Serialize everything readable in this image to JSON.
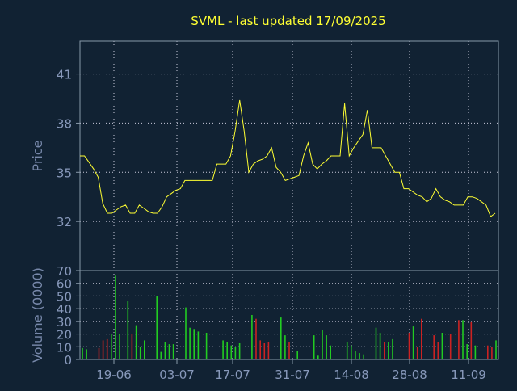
{
  "chart_data": [
    {
      "type": "line",
      "title": "SVML - last updated 17/09/2025",
      "ylabel": "Price",
      "ylim": [
        29.0,
        43.0
      ],
      "y_ticks": [
        32,
        35,
        38,
        41
      ],
      "grid": true,
      "x_tick_labels": [
        "19-06",
        "03-07",
        "17-07",
        "31-07",
        "14-08",
        "28-08",
        "11-09"
      ],
      "series": [
        {
          "values": [
            36.0,
            36.0,
            35.6,
            35.2,
            34.7,
            33.1,
            32.5,
            32.5,
            32.7,
            32.9,
            33.0,
            32.5,
            32.5,
            33.0,
            32.8,
            32.6,
            32.5,
            32.5,
            32.9,
            33.5,
            33.7,
            33.9,
            34.0,
            34.5,
            34.5,
            34.5,
            34.5,
            34.5,
            34.5,
            34.5,
            35.5,
            35.5,
            35.5,
            36.0,
            37.5,
            39.4,
            37.5,
            35.0,
            35.5,
            35.7,
            35.8,
            36.0,
            36.5,
            35.3,
            35.0,
            34.5,
            34.6,
            34.7,
            34.8,
            36.0,
            36.8,
            35.5,
            35.2,
            35.5,
            35.7,
            36.0,
            36.0,
            36.0,
            39.2,
            36.0,
            36.5,
            36.9,
            37.3,
            38.8,
            36.5,
            36.5,
            36.5,
            36.0,
            35.5,
            35.0,
            35.0,
            34.0,
            34.0,
            33.8,
            33.6,
            33.5,
            33.2,
            33.4,
            34.0,
            33.5,
            33.3,
            33.2,
            33.0,
            33.0,
            33.0,
            33.5,
            33.5,
            33.4,
            33.2,
            33.0,
            32.3,
            32.5
          ]
        }
      ]
    },
    {
      "type": "bar",
      "ylabel": "Volume (0000)",
      "ylim": [
        0,
        70
      ],
      "y_ticks": [
        0,
        10,
        20,
        30,
        40,
        50,
        60,
        70
      ],
      "grid": true,
      "series": [
        {
          "values": [
            9,
            8,
            0,
            0,
            9,
            15,
            16,
            20,
            66,
            20,
            0,
            46,
            20,
            27,
            10,
            15,
            0,
            0,
            50,
            6,
            14,
            12,
            12,
            0,
            0,
            41,
            25,
            24,
            22,
            0,
            21,
            0,
            0,
            0,
            15,
            14,
            11,
            10,
            13,
            0,
            0,
            35,
            32,
            15,
            13,
            14,
            0,
            0,
            33,
            19,
            14,
            0,
            7,
            0,
            0,
            0,
            19,
            3,
            23,
            19,
            11,
            0,
            0,
            0,
            14,
            11,
            7,
            5,
            4,
            0,
            0,
            25,
            21,
            14,
            14,
            16,
            0,
            0,
            0,
            21,
            26,
            10,
            32,
            0,
            0,
            19,
            14,
            21,
            0,
            20,
            0,
            31,
            31,
            12,
            30,
            11,
            0,
            0,
            11,
            10,
            15
          ],
          "colors": [
            "#22cc22",
            "#22cc22",
            "#22cc22",
            "#22cc22",
            "#cc2222",
            "#cc2222",
            "#cc2222",
            "#22cc22",
            "#22cc22",
            "#22cc22",
            "#22cc22",
            "#22cc22",
            "#cc2222",
            "#22cc22",
            "#22cc22",
            "#22cc22",
            "#22cc22",
            "#22cc22",
            "#22cc22",
            "#22cc22",
            "#22cc22",
            "#22cc22",
            "#22cc22",
            "#22cc22",
            "#22cc22",
            "#22cc22",
            "#22cc22",
            "#22cc22",
            "#22cc22",
            "#22cc22",
            "#22cc22",
            "#22cc22",
            "#22cc22",
            "#22cc22",
            "#22cc22",
            "#22cc22",
            "#22cc22",
            "#22cc22",
            "#22cc22",
            "#22cc22",
            "#22cc22",
            "#22cc22",
            "#cc2222",
            "#cc2222",
            "#cc2222",
            "#cc2222",
            "#22cc22",
            "#22cc22",
            "#22cc22",
            "#22cc22",
            "#cc2222",
            "#22cc22",
            "#22cc22",
            "#22cc22",
            "#22cc22",
            "#22cc22",
            "#22cc22",
            "#22cc22",
            "#22cc22",
            "#22cc22",
            "#22cc22",
            "#22cc22",
            "#22cc22",
            "#22cc22",
            "#22cc22",
            "#22cc22",
            "#22cc22",
            "#22cc22",
            "#22cc22",
            "#22cc22",
            "#22cc22",
            "#22cc22",
            "#22cc22",
            "#cc2222",
            "#22cc22",
            "#22cc22",
            "#22cc22",
            "#22cc22",
            "#22cc22",
            "#cc2222",
            "#22cc22",
            "#cc2222",
            "#cc2222",
            "#22cc22",
            "#22cc22",
            "#cc2222",
            "#cc2222",
            "#22cc22",
            "#22cc22",
            "#cc2222",
            "#22cc22",
            "#cc2222",
            "#22cc22",
            "#22cc22",
            "#cc2222",
            "#22cc22",
            "#22cc22",
            "#22cc22",
            "#cc2222",
            "#cc2222",
            "#22cc22"
          ]
        }
      ]
    }
  ],
  "colors": {
    "background": "#112233",
    "frame": "#8899aa",
    "grid": "#ccccdd",
    "title": "#ffff33",
    "price_line": "#ffff33",
    "label_text": "#7788aa",
    "tick_text": "#8899bb",
    "volume_up": "#22cc22",
    "volume_down": "#cc2222"
  }
}
